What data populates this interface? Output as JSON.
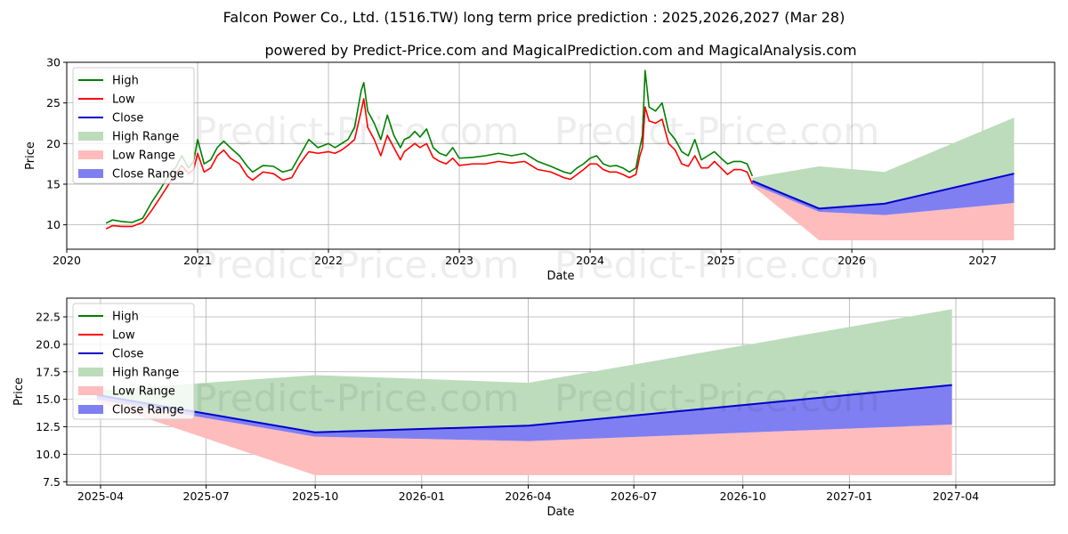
{
  "title": "Falcon Power Co., Ltd. (1516.TW) long term price prediction : 2025,2026,2027 (Mar 28)",
  "subtitle": "powered by Predict-Price.com and MagicalPrediction.com and MagicalAnalysis.com",
  "watermark": "Predict-Price.com",
  "colors": {
    "high": "#008000",
    "low": "#ff0000",
    "close": "#0000cc",
    "high_range": "#bcdcbc",
    "low_range": "#ffbcbc",
    "close_range": "#7f7ff2",
    "grid": "#b0b0b0"
  },
  "legend": {
    "high": "High",
    "low": "Low",
    "close": "Close",
    "high_range": "High Range",
    "low_range": "Low Range",
    "close_range": "Close Range"
  },
  "chart_data": [
    {
      "type": "line",
      "title": "Falcon Power Co., Ltd. (1516.TW) long term price prediction : 2025,2026,2027 (Mar 28)",
      "xlabel": "Date",
      "ylabel": "Price",
      "xlim": [
        2020.0,
        2027.55
      ],
      "ylim": [
        7,
        30
      ],
      "x_ticks": [
        2020,
        2021,
        2022,
        2023,
        2024,
        2025,
        2026,
        2027
      ],
      "x_tick_labels": [
        "2020",
        "2021",
        "2022",
        "2023",
        "2024",
        "2025",
        "2026",
        "2027"
      ],
      "y_ticks": [
        10,
        15,
        20,
        25,
        30
      ],
      "y_tick_labels": [
        "10",
        "15",
        "20",
        "25",
        "30"
      ],
      "grid": true,
      "legend_position": "upper-left",
      "history": {
        "x": [
          2020.3,
          2020.35,
          2020.42,
          2020.5,
          2020.58,
          2020.65,
          2020.72,
          2020.78,
          2020.83,
          2020.88,
          2020.93,
          2020.97,
          2021.0,
          2021.05,
          2021.1,
          2021.15,
          2021.2,
          2021.25,
          2021.32,
          2021.38,
          2021.42,
          2021.5,
          2021.58,
          2021.65,
          2021.72,
          2021.78,
          2021.85,
          2021.92,
          2022.0,
          2022.05,
          2022.1,
          2022.15,
          2022.2,
          2022.25,
          2022.27,
          2022.3,
          2022.35,
          2022.4,
          2022.45,
          2022.5,
          2022.55,
          2022.58,
          2022.62,
          2022.66,
          2022.7,
          2022.75,
          2022.8,
          2022.85,
          2022.9,
          2022.95,
          2023.0,
          2023.1,
          2023.2,
          2023.3,
          2023.4,
          2023.5,
          2023.6,
          2023.7,
          2023.8,
          2023.85,
          2023.9,
          2023.95,
          2024.0,
          2024.05,
          2024.1,
          2024.15,
          2024.2,
          2024.25,
          2024.3,
          2024.35,
          2024.38,
          2024.4,
          2024.42,
          2024.45,
          2024.5,
          2024.55,
          2024.6,
          2024.65,
          2024.7,
          2024.75,
          2024.8,
          2024.85,
          2024.9,
          2024.95,
          2025.0,
          2025.05,
          2025.1,
          2025.15,
          2025.2,
          2025.24
        ],
        "high": [
          10.2,
          10.6,
          10.4,
          10.3,
          10.8,
          12.8,
          14.5,
          16.2,
          17.0,
          18.5,
          17.0,
          17.8,
          20.5,
          17.5,
          18.0,
          19.5,
          20.3,
          19.5,
          18.5,
          17.2,
          16.5,
          17.3,
          17.2,
          16.5,
          16.8,
          18.5,
          20.5,
          19.5,
          20.0,
          19.5,
          20.0,
          20.5,
          22.0,
          26.5,
          27.5,
          24.0,
          22.5,
          20.5,
          23.5,
          21.0,
          19.5,
          20.5,
          20.8,
          21.5,
          20.8,
          21.8,
          19.5,
          18.8,
          18.5,
          19.5,
          18.2,
          18.3,
          18.5,
          18.8,
          18.5,
          18.8,
          17.8,
          17.2,
          16.5,
          16.3,
          17.0,
          17.5,
          18.2,
          18.5,
          17.5,
          17.2,
          17.3,
          17.0,
          16.5,
          17.0,
          19.5,
          21.0,
          29.0,
          24.5,
          24.0,
          25.0,
          21.5,
          20.5,
          19.0,
          18.5,
          20.5,
          18.0,
          18.5,
          19.0,
          18.2,
          17.5,
          17.8,
          17.8,
          17.5,
          16.0
        ],
        "low": [
          9.5,
          9.9,
          9.8,
          9.8,
          10.3,
          11.8,
          13.5,
          15.0,
          16.2,
          17.3,
          16.3,
          16.8,
          18.8,
          16.5,
          17.0,
          18.5,
          19.2,
          18.2,
          17.5,
          16.0,
          15.5,
          16.5,
          16.3,
          15.5,
          15.8,
          17.5,
          19.0,
          18.8,
          19.0,
          18.8,
          19.2,
          19.8,
          20.5,
          24.0,
          25.5,
          22.0,
          20.5,
          18.5,
          21.0,
          19.5,
          18.0,
          19.0,
          19.5,
          20.0,
          19.5,
          20.0,
          18.3,
          17.8,
          17.5,
          18.2,
          17.3,
          17.5,
          17.5,
          17.8,
          17.6,
          17.8,
          16.8,
          16.5,
          15.8,
          15.6,
          16.2,
          16.8,
          17.5,
          17.5,
          16.8,
          16.5,
          16.5,
          16.2,
          15.8,
          16.2,
          18.5,
          19.5,
          24.5,
          22.8,
          22.5,
          23.0,
          20.0,
          19.2,
          17.5,
          17.2,
          18.5,
          17.0,
          17.0,
          17.8,
          17.0,
          16.2,
          16.8,
          16.8,
          16.5,
          15.0
        ]
      },
      "forecast": {
        "x": [
          2025.24,
          2025.75,
          2026.25,
          2027.24
        ],
        "close": [
          15.4,
          12.0,
          12.6,
          16.3
        ],
        "high_range_upper": [
          15.8,
          17.2,
          16.5,
          23.2
        ],
        "close_range_lower": [
          15.0,
          11.6,
          11.2,
          12.7
        ],
        "low_range_lower": [
          14.8,
          8.1,
          8.1,
          8.1
        ]
      }
    },
    {
      "type": "line",
      "title": "",
      "xlabel": "Date",
      "ylabel": "Price",
      "xlim": [
        2025.17,
        2027.48
      ],
      "ylim": [
        7.2,
        24.2
      ],
      "x_ticks": [
        2025.249,
        2025.496,
        2025.751,
        2026.0,
        2026.249,
        2026.496,
        2026.751,
        2027.0,
        2027.249
      ],
      "x_tick_labels": [
        "2025-04",
        "2025-07",
        "2025-10",
        "2026-01",
        "2026-04",
        "2026-07",
        "2026-10",
        "2027-01",
        "2027-04"
      ],
      "y_ticks": [
        7.5,
        10.0,
        12.5,
        15.0,
        17.5,
        20.0,
        22.5
      ],
      "y_tick_labels": [
        "7.5",
        "10.0",
        "12.5",
        "15.0",
        "17.5",
        "20.0",
        "22.5"
      ],
      "grid": true,
      "legend_position": "upper-left",
      "forecast": {
        "x": [
          2025.24,
          2025.75,
          2026.25,
          2027.24
        ],
        "close": [
          15.4,
          12.0,
          12.6,
          16.3
        ],
        "high_range_upper": [
          15.8,
          17.2,
          16.5,
          23.2
        ],
        "close_range_lower": [
          15.0,
          11.6,
          11.2,
          12.7
        ],
        "low_range_lower": [
          14.8,
          8.1,
          8.1,
          8.1
        ]
      }
    }
  ]
}
